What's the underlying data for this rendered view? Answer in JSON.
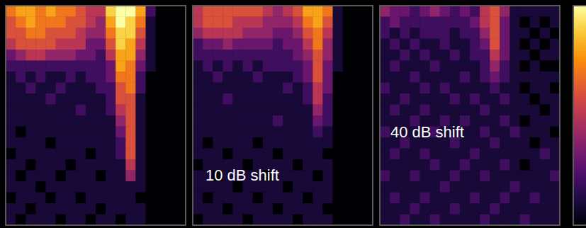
{
  "chart_data": [
    {
      "type": "heatmap",
      "tick_labels": false,
      "color_range": [
        0,
        10
      ],
      "cells": [
        [
          7,
          8,
          8,
          7,
          8,
          7,
          7,
          6,
          5,
          5,
          9,
          10,
          10,
          8,
          2,
          0,
          0,
          0
        ],
        [
          6,
          7,
          8,
          7,
          7,
          7,
          6,
          6,
          5,
          4,
          8,
          10,
          9,
          7,
          1,
          0,
          0,
          0
        ],
        [
          6,
          6,
          7,
          7,
          6,
          6,
          6,
          5,
          4,
          4,
          7,
          9,
          9,
          6,
          1,
          0,
          0,
          0
        ],
        [
          5,
          6,
          6,
          6,
          6,
          5,
          5,
          5,
          3,
          3,
          6,
          9,
          8,
          5,
          1,
          0,
          0,
          0
        ],
        [
          3,
          4,
          5,
          5,
          4,
          4,
          4,
          3,
          3,
          2,
          5,
          8,
          8,
          4,
          1,
          0,
          0,
          0
        ],
        [
          2,
          2,
          2,
          2,
          2,
          2,
          2,
          2,
          2,
          2,
          3,
          8,
          7,
          3,
          1,
          0,
          0,
          0
        ],
        [
          1,
          2,
          1,
          2,
          1,
          1,
          2,
          1,
          2,
          2,
          3,
          7,
          7,
          2,
          0,
          0,
          0,
          0
        ],
        [
          1,
          1,
          2,
          1,
          1,
          2,
          1,
          1,
          1,
          2,
          2,
          6,
          7,
          2,
          0,
          0,
          0,
          0
        ],
        [
          1,
          1,
          1,
          1,
          2,
          1,
          1,
          1,
          1,
          1,
          2,
          6,
          6,
          1,
          0,
          0,
          0,
          0
        ],
        [
          1,
          1,
          1,
          1,
          1,
          1,
          1,
          2,
          1,
          1,
          2,
          5,
          6,
          1,
          0,
          0,
          0,
          0
        ],
        [
          1,
          1,
          1,
          1,
          1,
          1,
          1,
          1,
          1,
          1,
          1,
          4,
          6,
          1,
          0,
          0,
          0,
          0
        ],
        [
          1,
          0,
          1,
          1,
          1,
          1,
          1,
          1,
          1,
          1,
          1,
          3,
          6,
          1,
          0,
          0,
          0,
          0
        ],
        [
          1,
          1,
          1,
          1,
          0,
          1,
          1,
          1,
          1,
          1,
          1,
          2,
          6,
          1,
          0,
          0,
          0,
          0
        ],
        [
          0,
          1,
          1,
          1,
          1,
          1,
          1,
          1,
          0,
          1,
          1,
          2,
          6,
          1,
          0,
          0,
          0,
          0
        ],
        [
          1,
          1,
          0,
          1,
          1,
          1,
          0,
          1,
          1,
          1,
          1,
          1,
          5,
          1,
          0,
          0,
          0,
          0
        ],
        [
          1,
          0,
          1,
          1,
          1,
          0,
          1,
          1,
          1,
          0,
          1,
          1,
          4,
          1,
          0,
          0,
          0,
          0
        ],
        [
          1,
          1,
          1,
          0,
          1,
          1,
          1,
          1,
          1,
          1,
          1,
          1,
          1,
          1,
          0,
          0,
          0,
          0
        ],
        [
          0,
          1,
          1,
          1,
          0,
          1,
          1,
          0,
          1,
          1,
          1,
          1,
          1,
          0,
          0,
          0,
          0,
          0
        ],
        [
          1,
          1,
          0,
          1,
          1,
          1,
          1,
          1,
          1,
          0,
          1,
          1,
          1,
          1,
          0,
          0,
          0,
          0
        ],
        [
          1,
          0,
          1,
          1,
          1,
          0,
          1,
          1,
          0,
          1,
          1,
          0,
          1,
          1,
          0,
          0,
          0,
          0
        ]
      ]
    },
    {
      "type": "heatmap",
      "tick_labels": false,
      "color_range": [
        0,
        10
      ],
      "annotation": "10 dB shift",
      "cells": [
        [
          5,
          6,
          6,
          6,
          6,
          6,
          6,
          5,
          4,
          5,
          6,
          8,
          8,
          7,
          1,
          0,
          0,
          0
        ],
        [
          5,
          6,
          6,
          6,
          5,
          5,
          5,
          4,
          4,
          4,
          5,
          7,
          8,
          6,
          1,
          0,
          0,
          0
        ],
        [
          4,
          5,
          5,
          5,
          5,
          4,
          4,
          4,
          3,
          3,
          4,
          6,
          7,
          5,
          1,
          0,
          0,
          0
        ],
        [
          2,
          3,
          3,
          4,
          3,
          3,
          3,
          3,
          2,
          3,
          3,
          5,
          7,
          4,
          1,
          0,
          0,
          0
        ],
        [
          2,
          2,
          2,
          2,
          2,
          2,
          2,
          2,
          2,
          2,
          3,
          4,
          6,
          4,
          1,
          0,
          0,
          0
        ],
        [
          1,
          2,
          1,
          2,
          1,
          2,
          1,
          2,
          2,
          2,
          2,
          3,
          6,
          3,
          1,
          0,
          0,
          0
        ],
        [
          1,
          1,
          2,
          1,
          1,
          1,
          2,
          1,
          1,
          1,
          2,
          3,
          6,
          3,
          0,
          0,
          0,
          0
        ],
        [
          1,
          1,
          1,
          1,
          1,
          1,
          1,
          1,
          1,
          2,
          1,
          2,
          5,
          3,
          0,
          0,
          0,
          0
        ],
        [
          1,
          1,
          1,
          2,
          1,
          1,
          1,
          1,
          1,
          1,
          1,
          2,
          5,
          2,
          0,
          0,
          0,
          0
        ],
        [
          1,
          1,
          1,
          1,
          1,
          1,
          1,
          1,
          1,
          1,
          1,
          1,
          4,
          2,
          0,
          0,
          0,
          0
        ],
        [
          1,
          1,
          1,
          1,
          1,
          1,
          1,
          1,
          2,
          1,
          1,
          1,
          3,
          2,
          0,
          0,
          0,
          0
        ],
        [
          1,
          1,
          1,
          1,
          1,
          1,
          1,
          1,
          1,
          1,
          1,
          1,
          2,
          1,
          0,
          0,
          0,
          0
        ],
        [
          1,
          0,
          1,
          1,
          1,
          1,
          0,
          1,
          1,
          1,
          1,
          1,
          1,
          1,
          0,
          0,
          0,
          0
        ],
        [
          1,
          1,
          1,
          0,
          1,
          1,
          1,
          1,
          0,
          1,
          1,
          1,
          1,
          0,
          0,
          0,
          0,
          0
        ],
        [
          0,
          1,
          1,
          1,
          1,
          0,
          1,
          1,
          1,
          1,
          0,
          1,
          1,
          1,
          0,
          0,
          0,
          0
        ],
        [
          1,
          1,
          0,
          1,
          1,
          1,
          1,
          0,
          1,
          1,
          1,
          1,
          0,
          1,
          0,
          0,
          0,
          0
        ],
        [
          1,
          1,
          1,
          1,
          0,
          1,
          1,
          1,
          1,
          0,
          1,
          1,
          1,
          1,
          0,
          0,
          0,
          0
        ],
        [
          1,
          0,
          1,
          1,
          1,
          1,
          0,
          1,
          1,
          1,
          1,
          0,
          1,
          1,
          0,
          0,
          0,
          0
        ],
        [
          1,
          1,
          1,
          0,
          1,
          1,
          1,
          1,
          0,
          1,
          1,
          1,
          1,
          0,
          0,
          0,
          0,
          0
        ],
        [
          0,
          1,
          1,
          1,
          1,
          0,
          1,
          1,
          1,
          1,
          0,
          1,
          1,
          1,
          0,
          0,
          0,
          0
        ]
      ]
    },
    {
      "type": "heatmap",
      "tick_labels": false,
      "color_range": [
        0,
        10
      ],
      "annotation": "40 dB shift",
      "cells": [
        [
          4,
          3,
          3,
          2,
          3,
          4,
          3,
          2,
          3,
          2,
          5,
          6,
          4,
          1,
          1,
          1,
          1,
          1
        ],
        [
          2,
          3,
          2,
          2,
          2,
          2,
          2,
          2,
          2,
          3,
          5,
          6,
          3,
          1,
          0,
          1,
          0,
          1
        ],
        [
          2,
          1,
          2,
          1,
          2,
          2,
          2,
          1,
          2,
          2,
          4,
          6,
          3,
          1,
          1,
          0,
          1,
          0
        ],
        [
          1,
          2,
          1,
          2,
          1,
          1,
          2,
          1,
          1,
          2,
          3,
          6,
          3,
          1,
          0,
          1,
          0,
          1
        ],
        [
          1,
          1,
          2,
          1,
          2,
          1,
          1,
          2,
          1,
          2,
          2,
          5,
          3,
          1,
          1,
          0,
          1,
          1
        ],
        [
          1,
          2,
          1,
          1,
          1,
          2,
          1,
          1,
          1,
          1,
          2,
          4,
          2,
          1,
          0,
          1,
          0,
          0
        ],
        [
          1,
          1,
          1,
          2,
          1,
          1,
          1,
          1,
          2,
          1,
          2,
          3,
          2,
          1,
          1,
          1,
          1,
          1
        ],
        [
          2,
          1,
          1,
          1,
          2,
          1,
          2,
          1,
          1,
          1,
          1,
          2,
          1,
          1,
          0,
          1,
          1,
          0
        ],
        [
          1,
          1,
          2,
          1,
          1,
          1,
          1,
          2,
          1,
          2,
          1,
          1,
          2,
          1,
          1,
          0,
          1,
          1
        ],
        [
          1,
          2,
          1,
          1,
          2,
          1,
          1,
          1,
          1,
          1,
          2,
          1,
          1,
          1,
          1,
          1,
          0,
          1
        ],
        [
          1,
          1,
          1,
          2,
          1,
          1,
          2,
          1,
          2,
          1,
          1,
          1,
          2,
          1,
          0,
          1,
          1,
          1
        ],
        [
          2,
          1,
          1,
          1,
          1,
          2,
          1,
          1,
          1,
          1,
          2,
          1,
          1,
          2,
          1,
          1,
          1,
          0
        ],
        [
          1,
          1,
          2,
          1,
          1,
          1,
          1,
          2,
          1,
          1,
          1,
          2,
          1,
          1,
          1,
          0,
          1,
          1
        ],
        [
          1,
          2,
          1,
          1,
          2,
          1,
          1,
          1,
          1,
          2,
          1,
          1,
          1,
          1,
          1,
          1,
          2,
          1
        ],
        [
          1,
          1,
          1,
          1,
          1,
          2,
          1,
          1,
          2,
          1,
          1,
          1,
          2,
          1,
          0,
          1,
          1,
          1
        ],
        [
          2,
          1,
          1,
          2,
          1,
          1,
          1,
          2,
          1,
          1,
          2,
          1,
          1,
          1,
          1,
          1,
          1,
          2
        ],
        [
          1,
          1,
          1,
          1,
          1,
          1,
          2,
          1,
          1,
          1,
          1,
          1,
          1,
          2,
          1,
          1,
          1,
          1
        ],
        [
          1,
          2,
          1,
          1,
          2,
          1,
          1,
          1,
          1,
          2,
          1,
          1,
          2,
          1,
          1,
          2,
          1,
          1
        ],
        [
          1,
          1,
          1,
          2,
          1,
          1,
          1,
          2,
          1,
          1,
          1,
          2,
          1,
          1,
          1,
          1,
          1,
          1
        ],
        [
          1,
          1,
          2,
          1,
          1,
          2,
          1,
          1,
          1,
          1,
          2,
          1,
          1,
          1,
          2,
          1,
          1,
          1
        ]
      ]
    }
  ]
}
